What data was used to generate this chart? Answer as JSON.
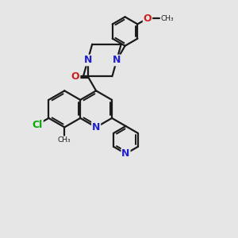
{
  "bg": "#e6e6e6",
  "bond_color": "#1a1a1a",
  "n_color": "#2020cc",
  "o_color": "#cc2020",
  "cl_color": "#00aa00",
  "lw": 1.6,
  "lw_inner": 1.4,
  "fs": 9.0,
  "xlim": [
    -1.0,
    9.5
  ],
  "ylim": [
    -1.5,
    9.0
  ],
  "figsize": [
    3.0,
    3.0
  ],
  "dpi": 100,
  "bl": 0.82
}
